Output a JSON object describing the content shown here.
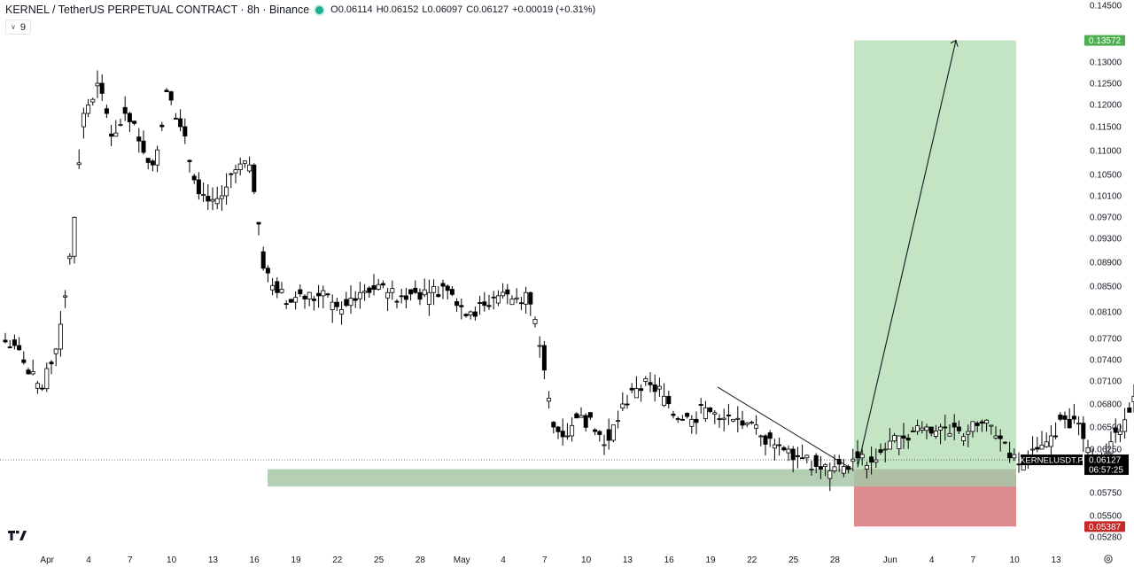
{
  "header": {
    "title": "KERNEL / TetherUS PERPETUAL CONTRACT · 8h · Binance",
    "open": "O0.06114",
    "high": "H0.06152",
    "low": "L0.06097",
    "close": "C0.06127",
    "change": "+0.00019 (+0.31%)",
    "interval_count": "9"
  },
  "colors": {
    "up": "#ffffff",
    "down": "#000000",
    "profit_zone": "#c3e5c3",
    "loss_zone": "#dd8b8e",
    "support_zone": "#a8c7a8",
    "target_badge": "#4caf50",
    "stop_badge": "#c62828",
    "price_badge": "#000000"
  },
  "chart_data": {
    "type": "candlestick",
    "interval": "8h",
    "y_axis_ticks": [
      "0.14500",
      "0.13000",
      "0.12500",
      "0.12000",
      "0.11500",
      "0.11000",
      "0.10500",
      "0.10100",
      "0.09700",
      "0.09300",
      "0.08900",
      "0.08500",
      "0.08100",
      "0.07700",
      "0.07400",
      "0.07100",
      "0.06800",
      "0.06500",
      "0.06250",
      "0.05750",
      "0.05500",
      "0.05280"
    ],
    "x_axis_ticks": [
      "Apr",
      "4",
      "7",
      "10",
      "13",
      "16",
      "19",
      "22",
      "25",
      "28",
      "May",
      "4",
      "7",
      "10",
      "13",
      "16",
      "19",
      "22",
      "25",
      "28",
      "Jun",
      "4",
      "7",
      "10",
      "13"
    ],
    "daily_closes": [
      0.076,
      0.072,
      0.07,
      0.0755,
      0.09,
      0.118,
      0.125,
      0.113,
      0.118,
      0.112,
      0.107,
      0.123,
      0.115,
      0.104,
      0.1,
      0.101,
      0.106,
      0.107,
      0.088,
      0.084,
      0.0825,
      0.083,
      0.0835,
      0.0825,
      0.082,
      0.084,
      0.0845,
      0.084,
      0.0835,
      0.084,
      0.084,
      0.085,
      0.082,
      0.081,
      0.082,
      0.0835,
      0.083,
      0.084,
      0.076,
      0.065,
      0.064,
      0.0665,
      0.0645,
      0.0635,
      0.068,
      0.07,
      0.0705,
      0.069,
      0.066,
      0.066,
      0.0675,
      0.066,
      0.066,
      0.0655,
      0.064,
      0.063,
      0.0625,
      0.0615,
      0.0605,
      0.06,
      0.0605,
      0.0615,
      0.061,
      0.0625,
      0.064,
      0.0645,
      0.065,
      0.065,
      0.065,
      0.0645,
      0.0655,
      0.064,
      0.0615,
      0.061,
      0.0625,
      0.064,
      0.066,
      0.0655,
      0.061,
      0.062,
      0.0645,
      0.069,
      0.066,
      0.0665,
      0.064,
      0.0625,
      0.0618,
      0.0625,
      0.062,
      0.0618,
      0.06,
      0.0608,
      0.0612
    ],
    "trendline": {
      "from": [
        "May 20",
        0.0702
      ],
      "to": [
        "May 30",
        0.0602
      ]
    },
    "support_zone": [
      0.0582,
      0.0602
    ],
    "position": {
      "entry": 0.0602,
      "target": 0.13572,
      "stop": 0.05387,
      "projected_end": "Jun 6"
    },
    "last_price": 0.06127
  },
  "price_labels": {
    "target": "0.13572",
    "stop": "0.05387",
    "last": "0.06127",
    "countdown": "06:57:25",
    "symbol_tag": "KERNELUSDT.P"
  }
}
